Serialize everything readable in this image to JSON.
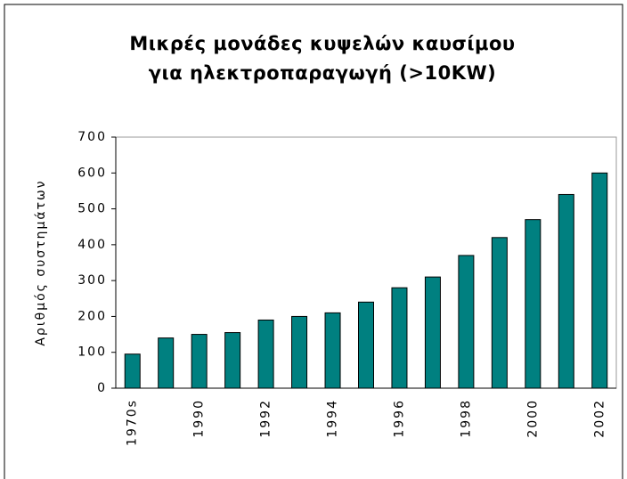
{
  "chart_data": {
    "type": "bar",
    "title": [
      "Μικρές μονάδες κυψελών καυσίμου",
      "για ηλεκτροπαραγωγή (>10KW)"
    ],
    "y_label": "Αριθμός συστημάτων",
    "categories": [
      "1970s",
      null,
      "1990",
      null,
      "1992",
      null,
      "1994",
      null,
      "1996",
      null,
      "1998",
      null,
      "2000",
      null,
      "2002"
    ],
    "values": [
      95,
      140,
      150,
      155,
      190,
      200,
      210,
      240,
      280,
      310,
      370,
      420,
      470,
      540,
      600
    ],
    "color": "#008080",
    "ylim": [
      0,
      700
    ],
    "yticks": [
      0,
      100,
      200,
      300,
      400,
      500,
      600,
      700
    ],
    "grid": false
  }
}
